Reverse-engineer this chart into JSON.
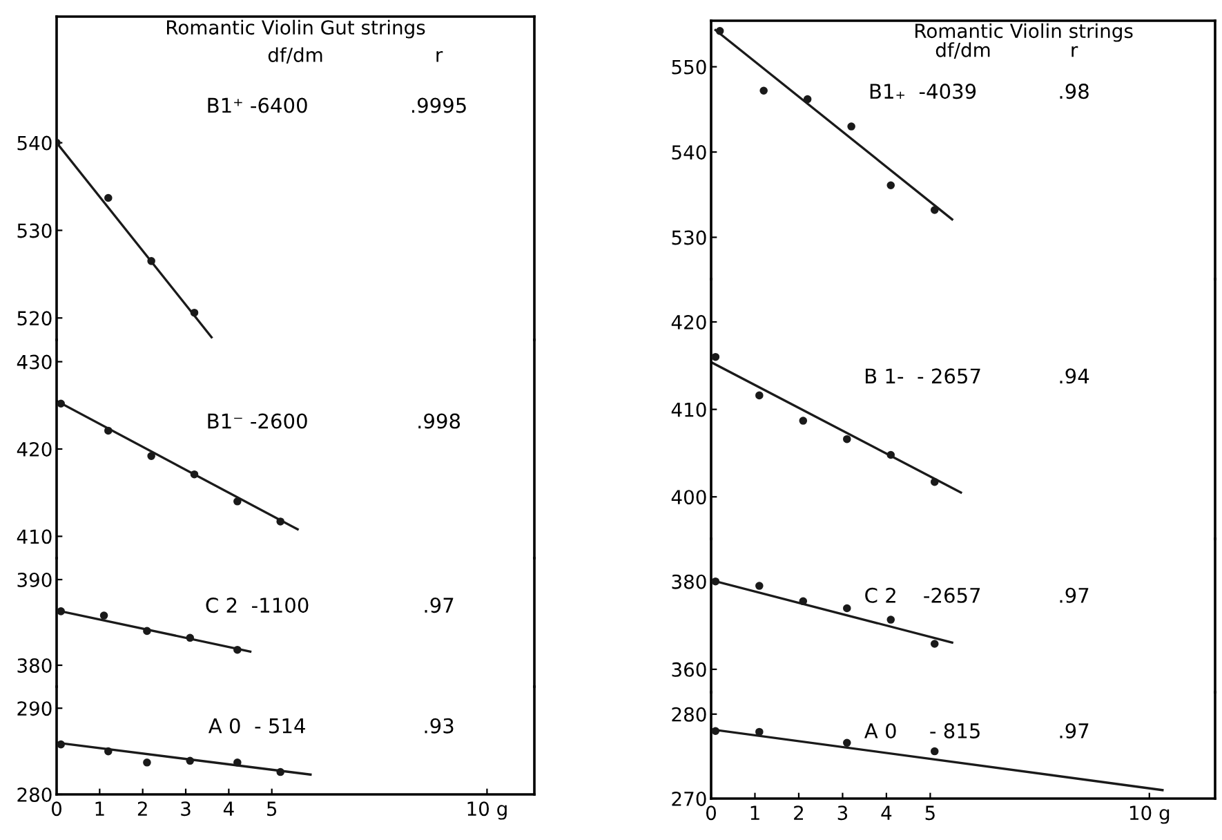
{
  "chart_data": [
    {
      "type": "scatter",
      "title": "Romantic Violin Gut strings",
      "annotations": [
        "df/dm",
        "r",
        "B1⁺ -6400",
        ".9995"
      ],
      "xlim": [
        0,
        11.1
      ],
      "ylim": [
        517.5,
        554.4
      ],
      "yticks": [
        520,
        530,
        540
      ],
      "tick_labels": "y",
      "grid": false,
      "series": [
        {
          "color": "#1a1a1a",
          "marker": "circle",
          "x": [
            0,
            1.2,
            2.2,
            3.2
          ],
          "values": [
            540,
            533.7,
            526.5,
            520.6
          ]
        },
        {
          "type": "line",
          "color": "#1a1a1a",
          "x": [
            0,
            3.6
          ],
          "values": [
            540,
            517.8
          ]
        }
      ]
    },
    {
      "type": "scatter",
      "annotations": [
        "B1⁻ -2600",
        ".998"
      ],
      "xlim": [
        0,
        11.1
      ],
      "ylim": [
        407.5,
        432.5
      ],
      "yticks": [
        410,
        420,
        430
      ],
      "tick_labels": "y",
      "grid": false,
      "series": [
        {
          "color": "#1a1a1a",
          "marker": "circle",
          "x": [
            0.1,
            1.2,
            2.2,
            3.2,
            4.2,
            5.2
          ],
          "values": [
            425.2,
            422.1,
            419.2,
            417.1,
            414,
            411.7
          ]
        },
        {
          "type": "line",
          "color": "#1a1a1a",
          "x": [
            0,
            5.6
          ],
          "values": [
            425.5,
            410.8
          ]
        }
      ]
    },
    {
      "type": "scatter",
      "annotations": [
        "C 2  -1100",
        ".97"
      ],
      "xlim": [
        0,
        11.1
      ],
      "ylim": [
        377.5,
        392.5
      ],
      "yticks": [
        380,
        390
      ],
      "tick_labels": "y",
      "grid": false,
      "series": [
        {
          "color": "#1a1a1a",
          "marker": "circle",
          "x": [
            0.1,
            1.1,
            2.1,
            3.1,
            4.2
          ],
          "values": [
            386.3,
            385.8,
            384,
            383.2,
            381.8
          ]
        },
        {
          "type": "line",
          "color": "#1a1a1a",
          "x": [
            0,
            4.5
          ],
          "values": [
            386.4,
            381.6
          ]
        }
      ]
    },
    {
      "type": "scatter",
      "annotations": [
        "A 0  - 514",
        ".93"
      ],
      "xlim": [
        0,
        11.1
      ],
      "xticks": [
        0,
        1,
        2,
        3,
        4,
        5,
        {
          "value": 10,
          "label": "10 g"
        }
      ],
      "ylim": [
        280,
        292.5
      ],
      "yticks": [
        280,
        290
      ],
      "grid": false,
      "series": [
        {
          "color": "#1a1a1a",
          "marker": "circle",
          "x": [
            0.1,
            1.2,
            2.1,
            3.1,
            4.2,
            5.2
          ],
          "values": [
            285.8,
            285,
            283.7,
            283.9,
            283.7,
            282.6
          ]
        },
        {
          "type": "line",
          "color": "#1a1a1a",
          "x": [
            0,
            5.9
          ],
          "values": [
            286,
            282.3
          ]
        }
      ]
    },
    {
      "type": "scatter",
      "title": "Romantic Violin strings",
      "annotations": [
        "df/dm",
        "r",
        "B1₊  -4039",
        ".98"
      ],
      "xlim": [
        0,
        11.5
      ],
      "ylim": [
        525.1,
        555.4
      ],
      "yticks": [
        530,
        540,
        550
      ],
      "tick_labels": "y",
      "grid": false,
      "series": [
        {
          "color": "#1a1a1a",
          "marker": "circle",
          "x": [
            0.2,
            1.2,
            2.2,
            3.2,
            4.1,
            5.1
          ],
          "values": [
            554.2,
            547.2,
            546.2,
            543,
            536.1,
            533.2
          ]
        },
        {
          "type": "line",
          "color": "#1a1a1a",
          "x": [
            0.1,
            5.5
          ],
          "values": [
            554.3,
            532.1
          ]
        }
      ]
    },
    {
      "type": "scatter",
      "annotations": [
        "B 1-  - 2657",
        ".94"
      ],
      "xlim": [
        0,
        11.5
      ],
      "ylim": [
        395.2,
        424.9
      ],
      "yticks": [
        400,
        410,
        420
      ],
      "tick_labels": "y",
      "grid": false,
      "series": [
        {
          "color": "#1a1a1a",
          "marker": "circle",
          "x": [
            0.1,
            1.1,
            2.1,
            3.1,
            4.1,
            5.1
          ],
          "values": [
            416,
            411.6,
            408.7,
            406.6,
            404.8,
            401.7
          ]
        },
        {
          "type": "line",
          "color": "#1a1a1a",
          "x": [
            0,
            5.7
          ],
          "values": [
            415.4,
            400.5
          ]
        }
      ]
    },
    {
      "type": "scatter",
      "annotations": [
        "C 2    -2657",
        ".97"
      ],
      "xlim": [
        0,
        11.5
      ],
      "ylim": [
        354.8,
        389.7
      ],
      "yticks": [
        360,
        380
      ],
      "tick_labels": "y",
      "grid": false,
      "series": [
        {
          "color": "#1a1a1a",
          "marker": "circle",
          "x": [
            0.1,
            1.1,
            2.1,
            3.1,
            4.1,
            5.1
          ],
          "values": [
            380,
            379,
            375.5,
            373.9,
            371.3,
            365.8
          ]
        },
        {
          "type": "line",
          "color": "#1a1a1a",
          "x": [
            0,
            5.5
          ],
          "values": [
            380.3,
            366.1
          ]
        }
      ]
    },
    {
      "type": "scatter",
      "annotations": [
        "A 0     - 815",
        ".97"
      ],
      "xlim": [
        0,
        11.5
      ],
      "xticks": [
        0,
        1,
        2,
        3,
        4,
        5,
        {
          "value": 10,
          "label": "10 g"
        }
      ],
      "ylim": [
        270,
        282.6
      ],
      "yticks": [
        270,
        280
      ],
      "grid": false,
      "series": [
        {
          "color": "#1a1a1a",
          "marker": "circle",
          "x": [
            0.1,
            1.1,
            3.1,
            5.1
          ],
          "values": [
            278,
            277.9,
            276.6,
            275.6
          ]
        },
        {
          "type": "line",
          "color": "#1a1a1a",
          "x": [
            0,
            10.3
          ],
          "values": [
            278.2,
            271
          ]
        }
      ]
    }
  ]
}
